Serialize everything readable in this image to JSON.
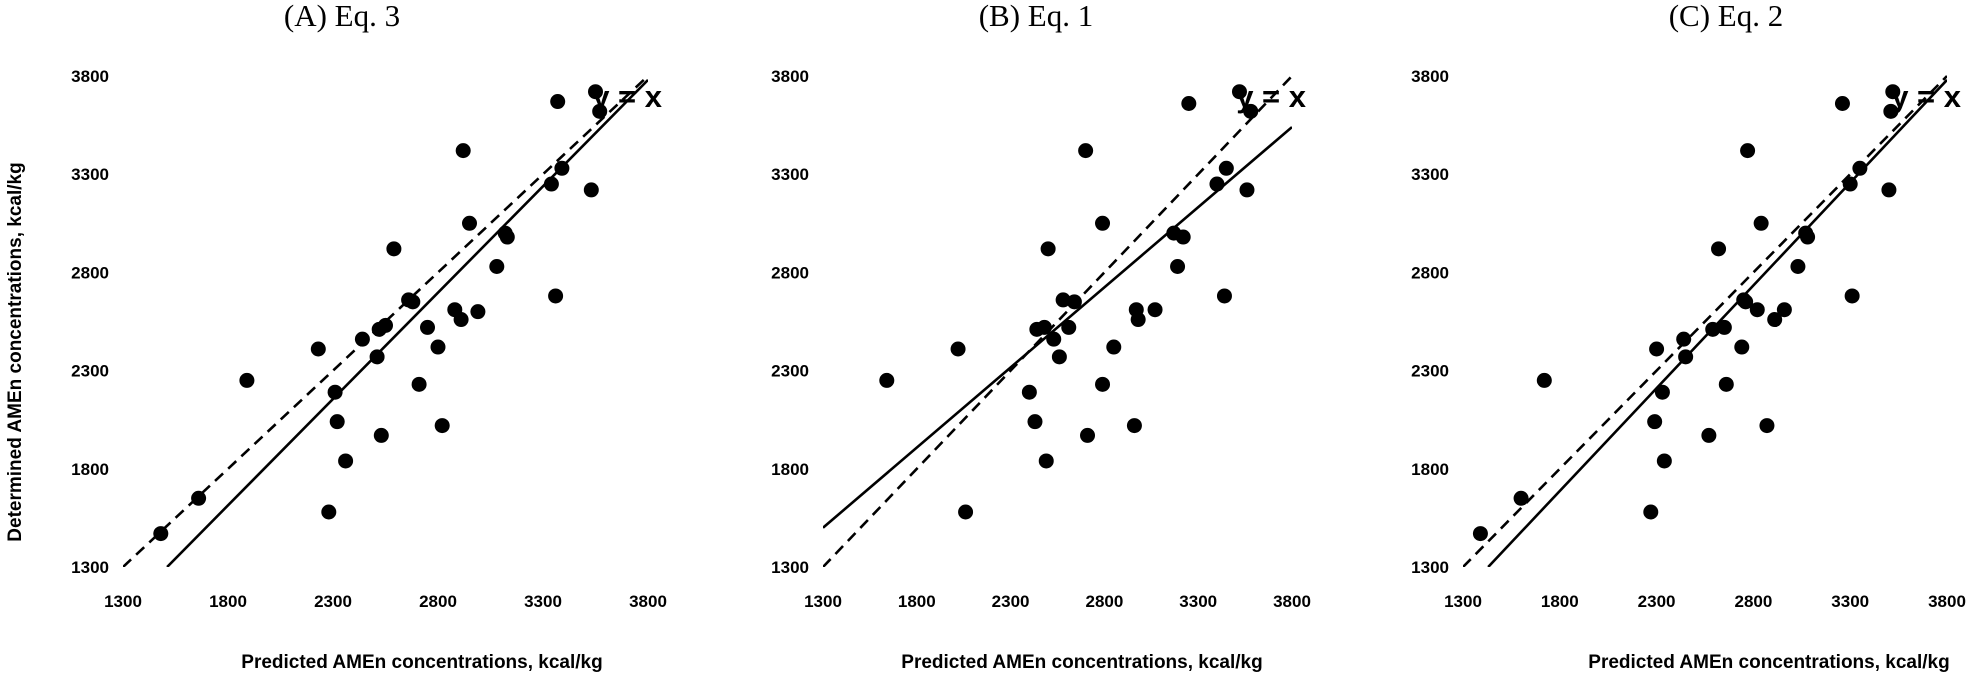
{
  "ylabel": "Determined AMEn concentrations, kcal/kg",
  "chart_data": [
    {
      "type": "scatter",
      "title": "(A)  Eq.  3",
      "xlabel": "Predicted AMEn concentrations, kcal/kg",
      "xlim": [
        1300,
        3800
      ],
      "ylim": [
        1300,
        3800
      ],
      "ticks": [
        "1300",
        "1800",
        "2300",
        "2800",
        "3300",
        "3800"
      ],
      "reference_line_label": "y = x",
      "fit_line": [
        [
          1510,
          1300
        ],
        [
          3800,
          3780
        ]
      ],
      "points": [
        [
          1480,
          1470
        ],
        [
          1660,
          1650
        ],
        [
          1890,
          2250
        ],
        [
          2230,
          2410
        ],
        [
          2280,
          1580
        ],
        [
          2310,
          2190
        ],
        [
          2320,
          2040
        ],
        [
          2360,
          1840
        ],
        [
          2440,
          2460
        ],
        [
          2510,
          2370
        ],
        [
          2520,
          2510
        ],
        [
          2530,
          1970
        ],
        [
          2550,
          2530
        ],
        [
          2590,
          2920
        ],
        [
          2660,
          2660
        ],
        [
          2680,
          2650
        ],
        [
          2710,
          2230
        ],
        [
          2750,
          2520
        ],
        [
          2800,
          2420
        ],
        [
          2820,
          2020
        ],
        [
          2880,
          2610
        ],
        [
          2910,
          2560
        ],
        [
          2920,
          3420
        ],
        [
          2950,
          3050
        ],
        [
          2990,
          2600
        ],
        [
          3080,
          2830
        ],
        [
          3120,
          3000
        ],
        [
          3130,
          2980
        ],
        [
          3340,
          3250
        ],
        [
          3360,
          2680
        ],
        [
          3370,
          3670
        ],
        [
          3390,
          3330
        ],
        [
          3530,
          3220
        ],
        [
          3550,
          3720
        ],
        [
          3570,
          3620
        ]
      ]
    },
    {
      "type": "scatter",
      "title": "(B)  Eq.  1",
      "xlabel": "Predicted AMEn concentrations, kcal/kg",
      "xlim": [
        1300,
        3800
      ],
      "ylim": [
        1300,
        3800
      ],
      "ticks": [
        "1300",
        "1800",
        "2300",
        "2800",
        "3300",
        "3800"
      ],
      "reference_line_label": "y = x",
      "fit_line": [
        [
          1300,
          1500
        ],
        [
          3800,
          3540
        ]
      ],
      "points": [
        [
          1640,
          2250
        ],
        [
          2020,
          2410
        ],
        [
          2060,
          1580
        ],
        [
          2400,
          2190
        ],
        [
          2430,
          2040
        ],
        [
          2440,
          2510
        ],
        [
          2480,
          2520
        ],
        [
          2490,
          1840
        ],
        [
          2500,
          2920
        ],
        [
          2530,
          2460
        ],
        [
          2560,
          2370
        ],
        [
          2580,
          2660
        ],
        [
          2610,
          2520
        ],
        [
          2640,
          2650
        ],
        [
          2700,
          3420
        ],
        [
          2710,
          1970
        ],
        [
          2790,
          3050
        ],
        [
          2790,
          2230
        ],
        [
          2850,
          2420
        ],
        [
          2960,
          2020
        ],
        [
          2970,
          2610
        ],
        [
          2980,
          2560
        ],
        [
          3070,
          2610
        ],
        [
          3170,
          3000
        ],
        [
          3190,
          2830
        ],
        [
          3220,
          2980
        ],
        [
          3250,
          3660
        ],
        [
          3400,
          3250
        ],
        [
          3440,
          2680
        ],
        [
          3450,
          3330
        ],
        [
          3520,
          3720
        ],
        [
          3560,
          3220
        ],
        [
          3580,
          3620
        ]
      ]
    },
    {
      "type": "scatter",
      "title": "(C)  Eq.  2",
      "xlabel": "Predicted AMEn concentrations, kcal/kg",
      "xlim": [
        1300,
        3800
      ],
      "ylim": [
        1300,
        3800
      ],
      "ticks": [
        "1300",
        "1800",
        "2300",
        "2800",
        "3300",
        "3800"
      ],
      "reference_line_label": "y = x",
      "fit_line": [
        [
          1430,
          1300
        ],
        [
          3800,
          3780
        ]
      ],
      "points": [
        [
          1390,
          1470
        ],
        [
          1600,
          1650
        ],
        [
          1720,
          2250
        ],
        [
          2270,
          1580
        ],
        [
          2290,
          2040
        ],
        [
          2300,
          2410
        ],
        [
          2330,
          2190
        ],
        [
          2340,
          1840
        ],
        [
          2440,
          2460
        ],
        [
          2450,
          2370
        ],
        [
          2570,
          1970
        ],
        [
          2590,
          2510
        ],
        [
          2620,
          2920
        ],
        [
          2650,
          2520
        ],
        [
          2660,
          2230
        ],
        [
          2740,
          2420
        ],
        [
          2750,
          2660
        ],
        [
          2760,
          2650
        ],
        [
          2770,
          3420
        ],
        [
          2820,
          2610
        ],
        [
          2840,
          3050
        ],
        [
          2870,
          2020
        ],
        [
          2910,
          2560
        ],
        [
          2960,
          2610
        ],
        [
          3030,
          2830
        ],
        [
          3070,
          3000
        ],
        [
          3080,
          2980
        ],
        [
          3260,
          3660
        ],
        [
          3300,
          3250
        ],
        [
          3310,
          2680
        ],
        [
          3350,
          3330
        ],
        [
          3500,
          3220
        ],
        [
          3510,
          3620
        ],
        [
          3520,
          3720
        ]
      ]
    }
  ]
}
